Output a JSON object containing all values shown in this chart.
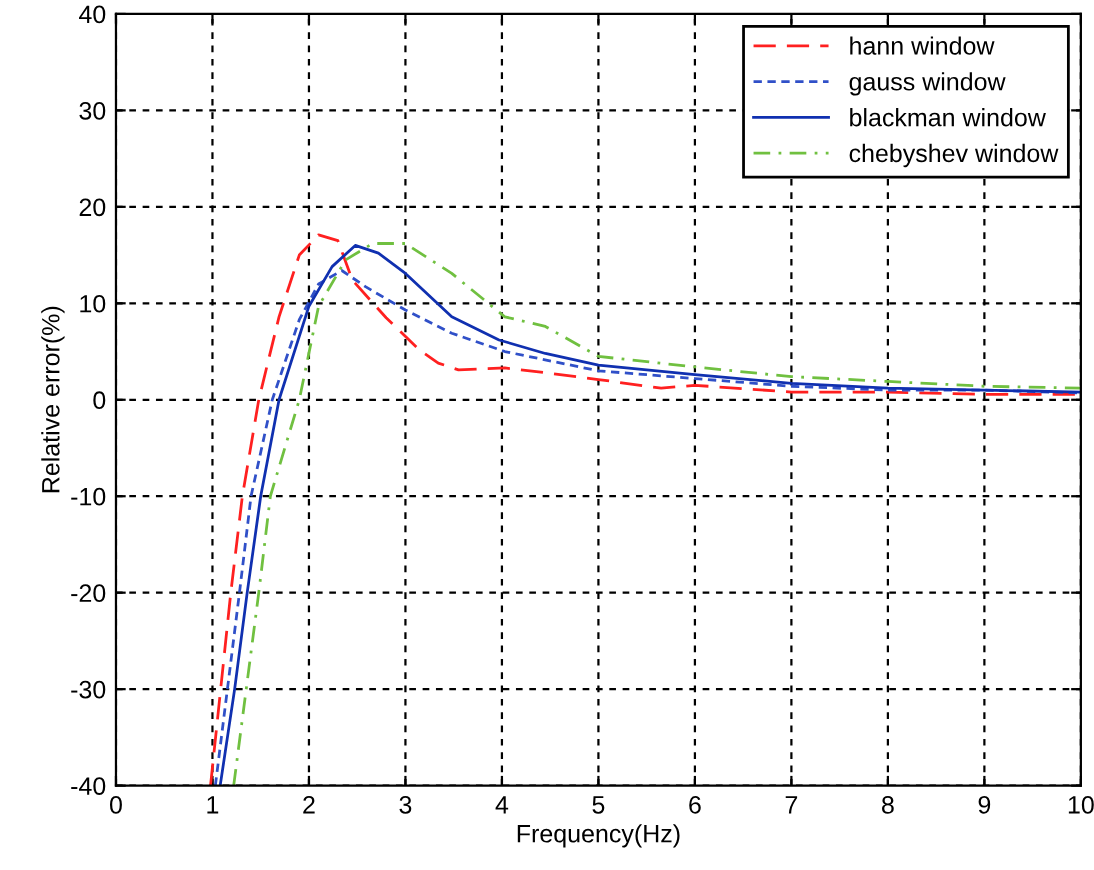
{
  "chart_data": {
    "type": "line",
    "xlabel": "Frequency(Hz)",
    "ylabel": "Relative error(%)",
    "xlim": [
      0,
      10
    ],
    "ylim": [
      -40,
      40
    ],
    "xticks": [
      0,
      1,
      2,
      3,
      4,
      5,
      6,
      7,
      8,
      9,
      10
    ],
    "yticks": [
      -40,
      -30,
      -20,
      -10,
      0,
      10,
      20,
      30,
      40
    ],
    "grid": true,
    "legend": "top right",
    "marker": "none",
    "series": [
      {
        "name": "hann window",
        "color": "#ff2020",
        "line_style": "dashed",
        "x": [
          0.98,
          1.19,
          1.31,
          1.48,
          1.69,
          1.9,
          2.1,
          2.3,
          2.45,
          2.8,
          3.14,
          3.34,
          3.55,
          4.03,
          4.45,
          5.0,
          5.65,
          6.0,
          7.0,
          8.0,
          9.0,
          10.0
        ],
        "values": [
          -40,
          -20,
          -10,
          0,
          8.6,
          15,
          17.1,
          16.5,
          12.4,
          8.5,
          5.2,
          3.8,
          3.1,
          3.3,
          2.8,
          2.1,
          1.2,
          1.5,
          0.8,
          0.8,
          0.55,
          0.55
        ]
      },
      {
        "name": "gauss window",
        "color": "#3050c8",
        "line_style": "dotted",
        "x": [
          1.03,
          1.28,
          1.4,
          1.62,
          1.9,
          2.1,
          2.34,
          2.59,
          3.0,
          3.48,
          4.03,
          5.0,
          6.0,
          7.0,
          8.0,
          9.0,
          10.0
        ],
        "values": [
          -40,
          -20,
          -10,
          0,
          8.3,
          12,
          13.4,
          11.7,
          9.3,
          6.9,
          5.0,
          3.0,
          2.2,
          1.4,
          1.0,
          1.0,
          0.7
        ]
      },
      {
        "name": "blackman window",
        "color": "#1030b0",
        "line_style": "solid",
        "x": [
          1.08,
          1.23,
          1.36,
          1.5,
          1.69,
          2.0,
          2.24,
          2.48,
          2.72,
          3.0,
          3.48,
          3.97,
          4.45,
          5.0,
          6.0,
          7.0,
          8.0,
          9.0,
          10.0
        ],
        "values": [
          -40,
          -30,
          -20,
          -10,
          0,
          9.7,
          13.8,
          16,
          15.2,
          13.1,
          8.6,
          6.2,
          4.8,
          3.6,
          2.6,
          1.7,
          1.2,
          1.0,
          0.8
        ]
      },
      {
        "name": "chebyshev window",
        "color": "#70c040",
        "line_style": "dashdot",
        "x": [
          1.22,
          1.48,
          1.6,
          1.9,
          2.1,
          2.38,
          2.66,
          3.0,
          3.48,
          4.03,
          4.45,
          5.0,
          6.0,
          7.0,
          8.0,
          9.0,
          10.0
        ],
        "values": [
          -40,
          -20,
          -10,
          0,
          9.7,
          14.5,
          16.2,
          16.2,
          13.1,
          8.6,
          7.6,
          4.5,
          3.4,
          2.4,
          1.9,
          1.4,
          1.2
        ]
      }
    ]
  }
}
